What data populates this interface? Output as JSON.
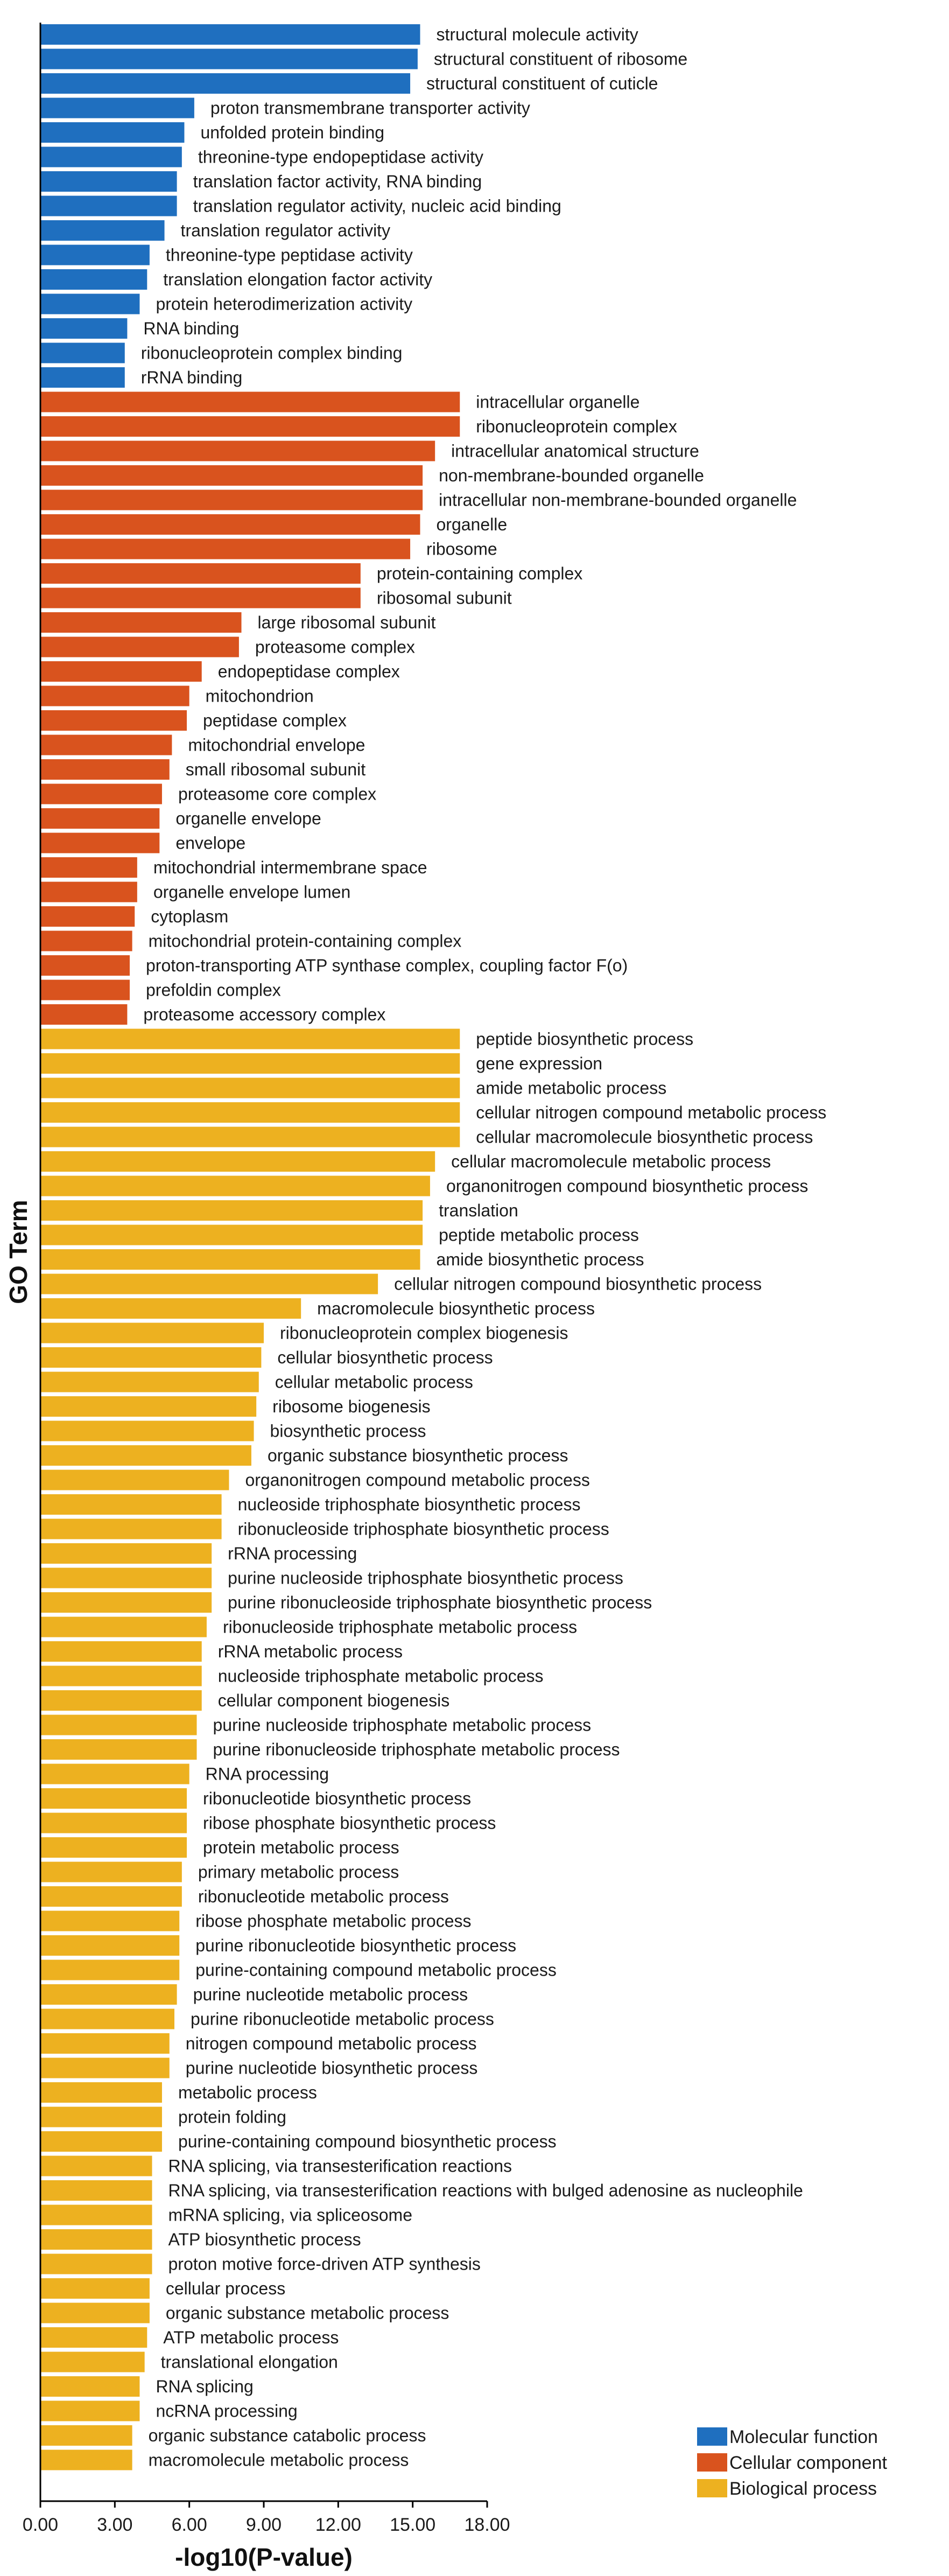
{
  "chart_data": {
    "type": "bar",
    "orientation": "horizontal",
    "xlabel": "-log10(P-value)",
    "ylabel": "GO Term",
    "xlim": [
      0,
      18
    ],
    "xticks": [
      "0.00",
      "3.00",
      "6.00",
      "9.00",
      "12.00",
      "15.00",
      "18.00"
    ],
    "legend_position": "bottom-right",
    "colors": {
      "Molecular function": "#1f6fbf",
      "Cellular component": "#d9531e",
      "Biological process": "#edb120"
    },
    "legend": [
      "Molecular function",
      "Cellular component",
      "Biological process"
    ],
    "bars": [
      {
        "label": "structural molecule activity",
        "value": 15.3,
        "category": "Molecular function"
      },
      {
        "label": "structural constituent of ribosome",
        "value": 15.2,
        "category": "Molecular function"
      },
      {
        "label": "structural constituent of cuticle",
        "value": 14.9,
        "category": "Molecular function"
      },
      {
        "label": "proton transmembrane transporter activity",
        "value": 6.2,
        "category": "Molecular function"
      },
      {
        "label": "unfolded protein binding",
        "value": 5.8,
        "category": "Molecular function"
      },
      {
        "label": "threonine-type endopeptidase activity",
        "value": 5.7,
        "category": "Molecular function"
      },
      {
        "label": "translation factor activity, RNA binding",
        "value": 5.5,
        "category": "Molecular function"
      },
      {
        "label": "translation regulator activity, nucleic acid binding",
        "value": 5.5,
        "category": "Molecular function"
      },
      {
        "label": "translation regulator activity",
        "value": 5.0,
        "category": "Molecular function"
      },
      {
        "label": "threonine-type peptidase activity",
        "value": 4.4,
        "category": "Molecular function"
      },
      {
        "label": "translation elongation factor activity",
        "value": 4.3,
        "category": "Molecular function"
      },
      {
        "label": "protein heterodimerization activity",
        "value": 4.0,
        "category": "Molecular function"
      },
      {
        "label": "RNA binding",
        "value": 3.5,
        "category": "Molecular function"
      },
      {
        "label": "ribonucleoprotein complex binding",
        "value": 3.4,
        "category": "Molecular function"
      },
      {
        "label": "rRNA binding",
        "value": 3.4,
        "category": "Molecular function"
      },
      {
        "label": "intracellular organelle",
        "value": 16.9,
        "category": "Cellular component"
      },
      {
        "label": "ribonucleoprotein complex",
        "value": 16.9,
        "category": "Cellular component"
      },
      {
        "label": "intracellular anatomical structure",
        "value": 15.9,
        "category": "Cellular component"
      },
      {
        "label": "non-membrane-bounded organelle",
        "value": 15.4,
        "category": "Cellular component"
      },
      {
        "label": "intracellular non-membrane-bounded organelle",
        "value": 15.4,
        "category": "Cellular component"
      },
      {
        "label": "organelle",
        "value": 15.3,
        "category": "Cellular component"
      },
      {
        "label": "ribosome",
        "value": 14.9,
        "category": "Cellular component"
      },
      {
        "label": "protein-containing complex",
        "value": 12.9,
        "category": "Cellular component"
      },
      {
        "label": "ribosomal subunit",
        "value": 12.9,
        "category": "Cellular component"
      },
      {
        "label": "large ribosomal subunit",
        "value": 8.1,
        "category": "Cellular component"
      },
      {
        "label": "proteasome complex",
        "value": 8.0,
        "category": "Cellular component"
      },
      {
        "label": "endopeptidase complex",
        "value": 6.5,
        "category": "Cellular component"
      },
      {
        "label": "mitochondrion",
        "value": 6.0,
        "category": "Cellular component"
      },
      {
        "label": "peptidase complex",
        "value": 5.9,
        "category": "Cellular component"
      },
      {
        "label": "mitochondrial envelope",
        "value": 5.3,
        "category": "Cellular component"
      },
      {
        "label": "small ribosomal subunit",
        "value": 5.2,
        "category": "Cellular component"
      },
      {
        "label": "proteasome core complex",
        "value": 4.9,
        "category": "Cellular component"
      },
      {
        "label": "organelle envelope",
        "value": 4.8,
        "category": "Cellular component"
      },
      {
        "label": "envelope",
        "value": 4.8,
        "category": "Cellular component"
      },
      {
        "label": "mitochondrial intermembrane space",
        "value": 3.9,
        "category": "Cellular component"
      },
      {
        "label": "organelle envelope lumen",
        "value": 3.9,
        "category": "Cellular component"
      },
      {
        "label": "cytoplasm",
        "value": 3.8,
        "category": "Cellular component"
      },
      {
        "label": "mitochondrial protein-containing complex",
        "value": 3.7,
        "category": "Cellular component"
      },
      {
        "label": "proton-transporting ATP synthase complex, coupling factor F(o)",
        "value": 3.6,
        "category": "Cellular component"
      },
      {
        "label": "prefoldin complex",
        "value": 3.6,
        "category": "Cellular component"
      },
      {
        "label": "proteasome accessory complex",
        "value": 3.5,
        "category": "Cellular component"
      },
      {
        "label": "peptide biosynthetic process",
        "value": 16.9,
        "category": "Biological process"
      },
      {
        "label": "gene expression",
        "value": 16.9,
        "category": "Biological process"
      },
      {
        "label": "amide metabolic process",
        "value": 16.9,
        "category": "Biological process"
      },
      {
        "label": "cellular nitrogen compound metabolic process",
        "value": 16.9,
        "category": "Biological process"
      },
      {
        "label": "cellular macromolecule biosynthetic process",
        "value": 16.9,
        "category": "Biological process"
      },
      {
        "label": "cellular macromolecule metabolic process",
        "value": 15.9,
        "category": "Biological process"
      },
      {
        "label": "organonitrogen compound biosynthetic process",
        "value": 15.7,
        "category": "Biological process"
      },
      {
        "label": "translation",
        "value": 15.4,
        "category": "Biological process"
      },
      {
        "label": "peptide metabolic process",
        "value": 15.4,
        "category": "Biological process"
      },
      {
        "label": "amide biosynthetic process",
        "value": 15.3,
        "category": "Biological process"
      },
      {
        "label": "cellular nitrogen compound biosynthetic process",
        "value": 13.6,
        "category": "Biological process"
      },
      {
        "label": "macromolecule biosynthetic process",
        "value": 10.5,
        "category": "Biological process"
      },
      {
        "label": "ribonucleoprotein complex biogenesis",
        "value": 9.0,
        "category": "Biological process"
      },
      {
        "label": "cellular biosynthetic process",
        "value": 8.9,
        "category": "Biological process"
      },
      {
        "label": "cellular metabolic process",
        "value": 8.8,
        "category": "Biological process"
      },
      {
        "label": "ribosome biogenesis",
        "value": 8.7,
        "category": "Biological process"
      },
      {
        "label": "biosynthetic process",
        "value": 8.6,
        "category": "Biological process"
      },
      {
        "label": "organic substance biosynthetic process",
        "value": 8.5,
        "category": "Biological process"
      },
      {
        "label": "organonitrogen compound metabolic process",
        "value": 7.6,
        "category": "Biological process"
      },
      {
        "label": "nucleoside triphosphate biosynthetic process",
        "value": 7.3,
        "category": "Biological process"
      },
      {
        "label": "ribonucleoside triphosphate biosynthetic process",
        "value": 7.3,
        "category": "Biological process"
      },
      {
        "label": "rRNA processing",
        "value": 6.9,
        "category": "Biological process"
      },
      {
        "label": "purine nucleoside triphosphate biosynthetic process",
        "value": 6.9,
        "category": "Biological process"
      },
      {
        "label": "purine ribonucleoside triphosphate biosynthetic process",
        "value": 6.9,
        "category": "Biological process"
      },
      {
        "label": "ribonucleoside triphosphate metabolic process",
        "value": 6.7,
        "category": "Biological process"
      },
      {
        "label": "rRNA metabolic process",
        "value": 6.5,
        "category": "Biological process"
      },
      {
        "label": "nucleoside triphosphate metabolic process",
        "value": 6.5,
        "category": "Biological process"
      },
      {
        "label": "cellular component biogenesis",
        "value": 6.5,
        "category": "Biological process"
      },
      {
        "label": "purine nucleoside triphosphate metabolic process",
        "value": 6.3,
        "category": "Biological process"
      },
      {
        "label": "purine ribonucleoside triphosphate metabolic process",
        "value": 6.3,
        "category": "Biological process"
      },
      {
        "label": "RNA processing",
        "value": 6.0,
        "category": "Biological process"
      },
      {
        "label": "ribonucleotide biosynthetic process",
        "value": 5.9,
        "category": "Biological process"
      },
      {
        "label": "ribose phosphate biosynthetic process",
        "value": 5.9,
        "category": "Biological process"
      },
      {
        "label": "protein metabolic process",
        "value": 5.9,
        "category": "Biological process"
      },
      {
        "label": "primary metabolic process",
        "value": 5.7,
        "category": "Biological process"
      },
      {
        "label": "ribonucleotide metabolic process",
        "value": 5.7,
        "category": "Biological process"
      },
      {
        "label": "ribose phosphate metabolic process",
        "value": 5.6,
        "category": "Biological process"
      },
      {
        "label": "purine ribonucleotide biosynthetic process",
        "value": 5.6,
        "category": "Biological process"
      },
      {
        "label": "purine-containing compound metabolic process",
        "value": 5.6,
        "category": "Biological process"
      },
      {
        "label": "purine nucleotide metabolic process",
        "value": 5.5,
        "category": "Biological process"
      },
      {
        "label": "purine ribonucleotide metabolic process",
        "value": 5.4,
        "category": "Biological process"
      },
      {
        "label": "nitrogen compound metabolic process",
        "value": 5.2,
        "category": "Biological process"
      },
      {
        "label": "purine nucleotide biosynthetic process",
        "value": 5.2,
        "category": "Biological process"
      },
      {
        "label": "metabolic process",
        "value": 4.9,
        "category": "Biological process"
      },
      {
        "label": "protein folding",
        "value": 4.9,
        "category": "Biological process"
      },
      {
        "label": "purine-containing compound biosynthetic process",
        "value": 4.9,
        "category": "Biological process"
      },
      {
        "label": "RNA splicing, via transesterification reactions",
        "value": 4.5,
        "category": "Biological process"
      },
      {
        "label": "RNA splicing, via transesterification reactions with bulged adenosine as nucleophile",
        "value": 4.5,
        "category": "Biological process"
      },
      {
        "label": "mRNA splicing, via spliceosome",
        "value": 4.5,
        "category": "Biological process"
      },
      {
        "label": "ATP biosynthetic process",
        "value": 4.5,
        "category": "Biological process"
      },
      {
        "label": "proton motive force-driven ATP synthesis",
        "value": 4.5,
        "category": "Biological process"
      },
      {
        "label": "cellular process",
        "value": 4.4,
        "category": "Biological process"
      },
      {
        "label": "organic substance metabolic process",
        "value": 4.4,
        "category": "Biological process"
      },
      {
        "label": "ATP metabolic process",
        "value": 4.3,
        "category": "Biological process"
      },
      {
        "label": "translational elongation",
        "value": 4.2,
        "category": "Biological process"
      },
      {
        "label": "RNA splicing",
        "value": 4.0,
        "category": "Biological process"
      },
      {
        "label": "ncRNA processing",
        "value": 4.0,
        "category": "Biological process"
      },
      {
        "label": "organic substance catabolic process",
        "value": 3.7,
        "category": "Biological process"
      },
      {
        "label": "macromolecule metabolic process",
        "value": 3.7,
        "category": "Biological process"
      }
    ]
  }
}
